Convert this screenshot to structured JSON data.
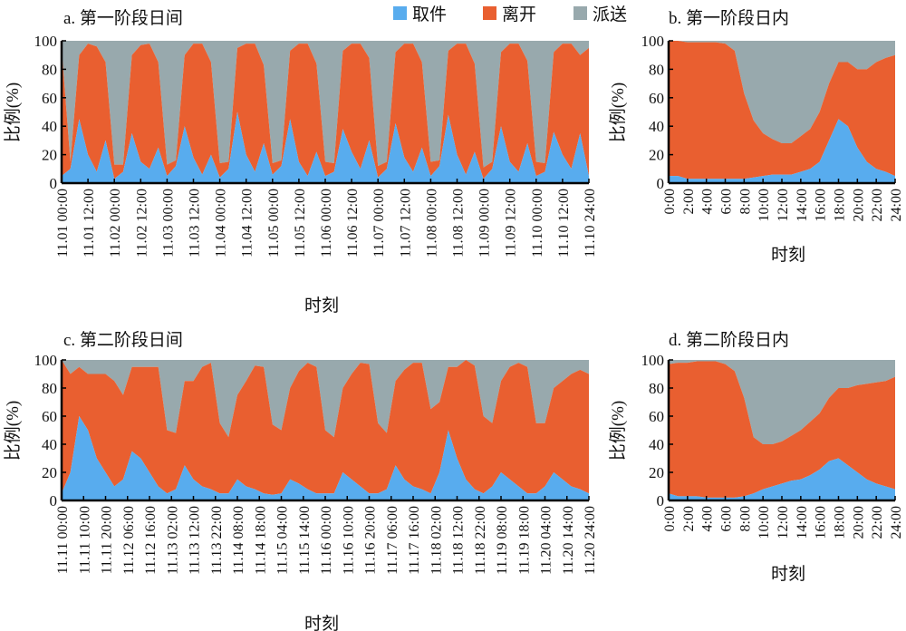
{
  "legend": {
    "items": [
      {
        "label": "取件",
        "color": "#58acee"
      },
      {
        "label": "离开",
        "color": "#e95f30"
      },
      {
        "label": "派送",
        "color": "#98a9ad"
      }
    ]
  },
  "chart_data": [
    {
      "id": "a",
      "type": "area",
      "stacked": true,
      "title": "a. 第一阶段日间",
      "xlabel": "时刻",
      "ylabel": "比例(%)",
      "ylim": [
        0,
        100
      ],
      "yticks": [
        "0",
        "20",
        "40",
        "60",
        "80",
        "100"
      ],
      "x_unit": "hours since 11.01 00:00",
      "x_step": 4,
      "xlim": [
        0,
        240
      ],
      "xtick_step": 12,
      "xticks": [
        "11.01 00:00",
        "11.01 12:00",
        "11.02 00:00",
        "11.02 12:00",
        "11.03 00:00",
        "11.03 12:00",
        "11.04 00:00",
        "11.04 12:00",
        "11.05 00:00",
        "11.05 12:00",
        "11.06 00:00",
        "11.06 12:00",
        "11.07 00:00",
        "11.07 12:00",
        "11.08 00:00",
        "11.08 12:00",
        "11.09 00:00",
        "11.09 12:00",
        "11.10 00:00",
        "11.10 12:00",
        "11.10 24:00"
      ],
      "series": [
        {
          "name": "取件",
          "values": [
            5,
            10,
            45,
            20,
            8,
            30,
            3,
            8,
            35,
            15,
            10,
            25,
            5,
            12,
            40,
            18,
            6,
            20,
            4,
            10,
            50,
            20,
            8,
            28,
            6,
            12,
            45,
            15,
            5,
            22,
            5,
            8,
            38,
            22,
            10,
            30,
            4,
            10,
            42,
            18,
            8,
            25,
            5,
            12,
            48,
            20,
            6,
            22,
            3,
            10,
            40,
            15,
            8,
            28,
            5,
            8,
            36,
            20,
            10,
            35,
            5
          ]
        },
        {
          "name": "离开",
          "values": [
            90,
            5,
            45,
            78,
            88,
            55,
            10,
            5,
            55,
            82,
            88,
            60,
            8,
            4,
            50,
            80,
            92,
            65,
            10,
            5,
            45,
            78,
            90,
            55,
            8,
            4,
            48,
            83,
            93,
            62,
            10,
            6,
            55,
            76,
            88,
            58,
            8,
            5,
            50,
            80,
            90,
            60,
            10,
            4,
            45,
            78,
            92,
            62,
            8,
            5,
            52,
            83,
            90,
            58,
            10,
            6,
            56,
            78,
            88,
            55,
            90
          ]
        },
        {
          "name": "派送",
          "values": "remainder to 100"
        }
      ]
    },
    {
      "id": "b",
      "type": "area",
      "stacked": true,
      "title": "b. 第一阶段日内",
      "xlabel": "时刻",
      "ylabel": "比例(%)",
      "ylim": [
        0,
        100
      ],
      "yticks": [
        "0",
        "20",
        "40",
        "60",
        "80",
        "100"
      ],
      "x_unit": "hour of day",
      "x_step": 1,
      "xlim": [
        0,
        24
      ],
      "xtick_step": 2,
      "xticks": [
        "0:00",
        "2:00",
        "4:00",
        "6:00",
        "8:00",
        "10:00",
        "12:00",
        "14:00",
        "16:00",
        "18:00",
        "20:00",
        "22:00",
        "24:00"
      ],
      "series": [
        {
          "name": "取件",
          "values": [
            5,
            5,
            3,
            3,
            3,
            3,
            3,
            3,
            3,
            4,
            5,
            6,
            6,
            6,
            8,
            10,
            15,
            30,
            45,
            40,
            25,
            15,
            10,
            8,
            5
          ]
        },
        {
          "name": "离开",
          "values": [
            95,
            95,
            96,
            96,
            96,
            96,
            95,
            90,
            60,
            40,
            30,
            25,
            22,
            22,
            25,
            28,
            35,
            40,
            40,
            45,
            55,
            65,
            75,
            80,
            85
          ]
        },
        {
          "name": "派送",
          "values": "remainder to 100"
        }
      ]
    },
    {
      "id": "c",
      "type": "area",
      "stacked": true,
      "title": "c. 第二阶段日间",
      "xlabel": "时刻",
      "ylabel": "比例(%)",
      "ylim": [
        0,
        100
      ],
      "yticks": [
        "0",
        "20",
        "40",
        "60",
        "80",
        "100"
      ],
      "x_unit": "hours since 11.11 00:00",
      "x_step": 4,
      "xlim": [
        0,
        240
      ],
      "xtick_step": 10,
      "xticks": [
        "11.11 00:00",
        "11.11 10:00",
        "11.11 20:00",
        "11.12 06:00",
        "11.12 16:00",
        "11.13 02:00",
        "11.13 12:00",
        "11.13 22:00",
        "11.14 08:00",
        "11.14 18:00",
        "11.15 04:00",
        "11.15 14:00",
        "11.16 00:00",
        "11.16 10:00",
        "11.16 20:00",
        "11.17 06:00",
        "11.17 16:00",
        "11.18 02:00",
        "11.18 12:00",
        "11.18 22:00",
        "11.19 08:00",
        "11.19 18:00",
        "11.20 04:00",
        "11.20 14:00",
        "11.20 24:00"
      ],
      "series": [
        {
          "name": "取件",
          "values": [
            5,
            20,
            60,
            50,
            30,
            20,
            10,
            15,
            35,
            30,
            20,
            10,
            5,
            8,
            25,
            15,
            10,
            8,
            5,
            5,
            15,
            10,
            8,
            5,
            4,
            5,
            15,
            12,
            8,
            5,
            5,
            5,
            20,
            15,
            10,
            5,
            5,
            8,
            25,
            15,
            10,
            8,
            5,
            20,
            50,
            30,
            15,
            8,
            5,
            10,
            20,
            15,
            10,
            5,
            5,
            10,
            20,
            15,
            10,
            8,
            5
          ]
        },
        {
          "name": "离开",
          "values": [
            95,
            70,
            35,
            40,
            60,
            70,
            75,
            60,
            60,
            65,
            75,
            85,
            45,
            40,
            60,
            70,
            85,
            90,
            50,
            40,
            60,
            75,
            88,
            90,
            50,
            45,
            65,
            80,
            90,
            90,
            45,
            40,
            60,
            75,
            88,
            92,
            50,
            40,
            60,
            78,
            88,
            90,
            60,
            50,
            45,
            65,
            85,
            88,
            55,
            45,
            65,
            80,
            88,
            90,
            50,
            45,
            60,
            70,
            80,
            85,
            85
          ]
        },
        {
          "name": "派送",
          "values": "remainder to 100"
        }
      ]
    },
    {
      "id": "d",
      "type": "area",
      "stacked": true,
      "title": "d. 第二阶段日内",
      "xlabel": "时刻",
      "ylabel": "比例(%)",
      "ylim": [
        0,
        100
      ],
      "yticks": [
        "0",
        "20",
        "40",
        "60",
        "80",
        "100"
      ],
      "x_unit": "hour of day",
      "x_step": 1,
      "xlim": [
        0,
        24
      ],
      "xtick_step": 2,
      "xticks": [
        "0:00",
        "2:00",
        "4:00",
        "6:00",
        "8:00",
        "10:00",
        "12:00",
        "14:00",
        "16:00",
        "18:00",
        "20:00",
        "22:00",
        "24:00"
      ],
      "series": [
        {
          "name": "取件",
          "values": [
            5,
            3,
            3,
            3,
            2,
            2,
            2,
            2,
            3,
            5,
            8,
            10,
            12,
            14,
            15,
            18,
            22,
            28,
            30,
            25,
            20,
            15,
            12,
            10,
            8
          ]
        },
        {
          "name": "离开",
          "values": [
            92,
            95,
            95,
            96,
            97,
            97,
            95,
            90,
            70,
            40,
            32,
            30,
            30,
            32,
            35,
            38,
            40,
            45,
            50,
            55,
            62,
            68,
            72,
            75,
            80
          ]
        },
        {
          "name": "派送",
          "values": "remainder to 100"
        }
      ]
    }
  ]
}
